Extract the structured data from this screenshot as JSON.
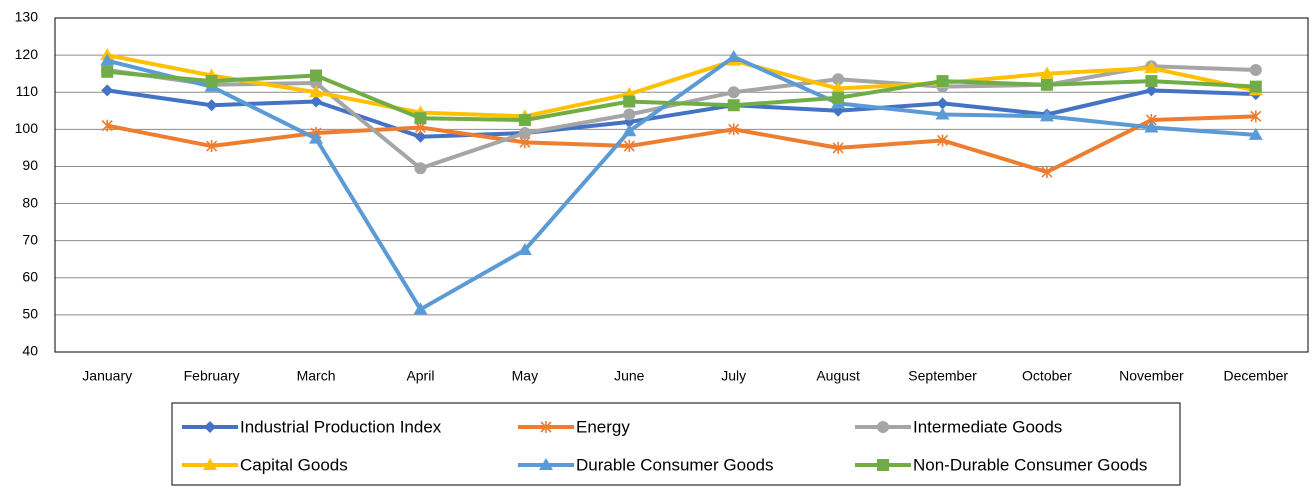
{
  "chart_data": {
    "type": "line",
    "categories": [
      "January",
      "February",
      "March",
      "April",
      "May",
      "June",
      "July",
      "August",
      "September",
      "October",
      "November",
      "December"
    ],
    "series": [
      {
        "name": "Industrial Production Index",
        "color": "#4472c4",
        "marker": "diamond",
        "values": [
          110.5,
          106.5,
          107.5,
          98,
          99,
          102,
          106.5,
          105,
          107,
          104,
          110.5,
          109.5
        ]
      },
      {
        "name": "Energy",
        "color": "#ed7d31",
        "marker": "star",
        "values": [
          101,
          95.5,
          99,
          100.5,
          96.5,
          95.5,
          100,
          95,
          97,
          88.5,
          102.5,
          103.5
        ]
      },
      {
        "name": "Intermediate Goods",
        "color": "#a5a5a5",
        "marker": "circle",
        "values": [
          116,
          112,
          112.5,
          89.5,
          99,
          104,
          110,
          113.5,
          111.5,
          112,
          117,
          116
        ]
      },
      {
        "name": "Capital Goods",
        "color": "#ffc000",
        "marker": "triangle",
        "values": [
          120,
          114.5,
          110,
          104.5,
          103.5,
          109.5,
          118.5,
          111,
          112.5,
          115,
          116.5,
          110.5
        ]
      },
      {
        "name": "Durable Consumer Goods",
        "color": "#5b9bd5",
        "marker": "triangle",
        "values": [
          118.5,
          111.5,
          97.5,
          51.5,
          67.5,
          99.5,
          119.5,
          107,
          104,
          103.5,
          100.5,
          98.5
        ]
      },
      {
        "name": "Non-Durable Consumer Goods",
        "color": "#70ad47",
        "marker": "square",
        "values": [
          115.5,
          113,
          114.5,
          103,
          102.5,
          107.5,
          106.5,
          108.5,
          113,
          112,
          113,
          111.5
        ]
      }
    ],
    "ylim": [
      40,
      130
    ],
    "yticks": [
      40,
      50,
      60,
      70,
      80,
      90,
      100,
      110,
      120,
      130
    ],
    "grid": true,
    "legend": "bottom"
  }
}
